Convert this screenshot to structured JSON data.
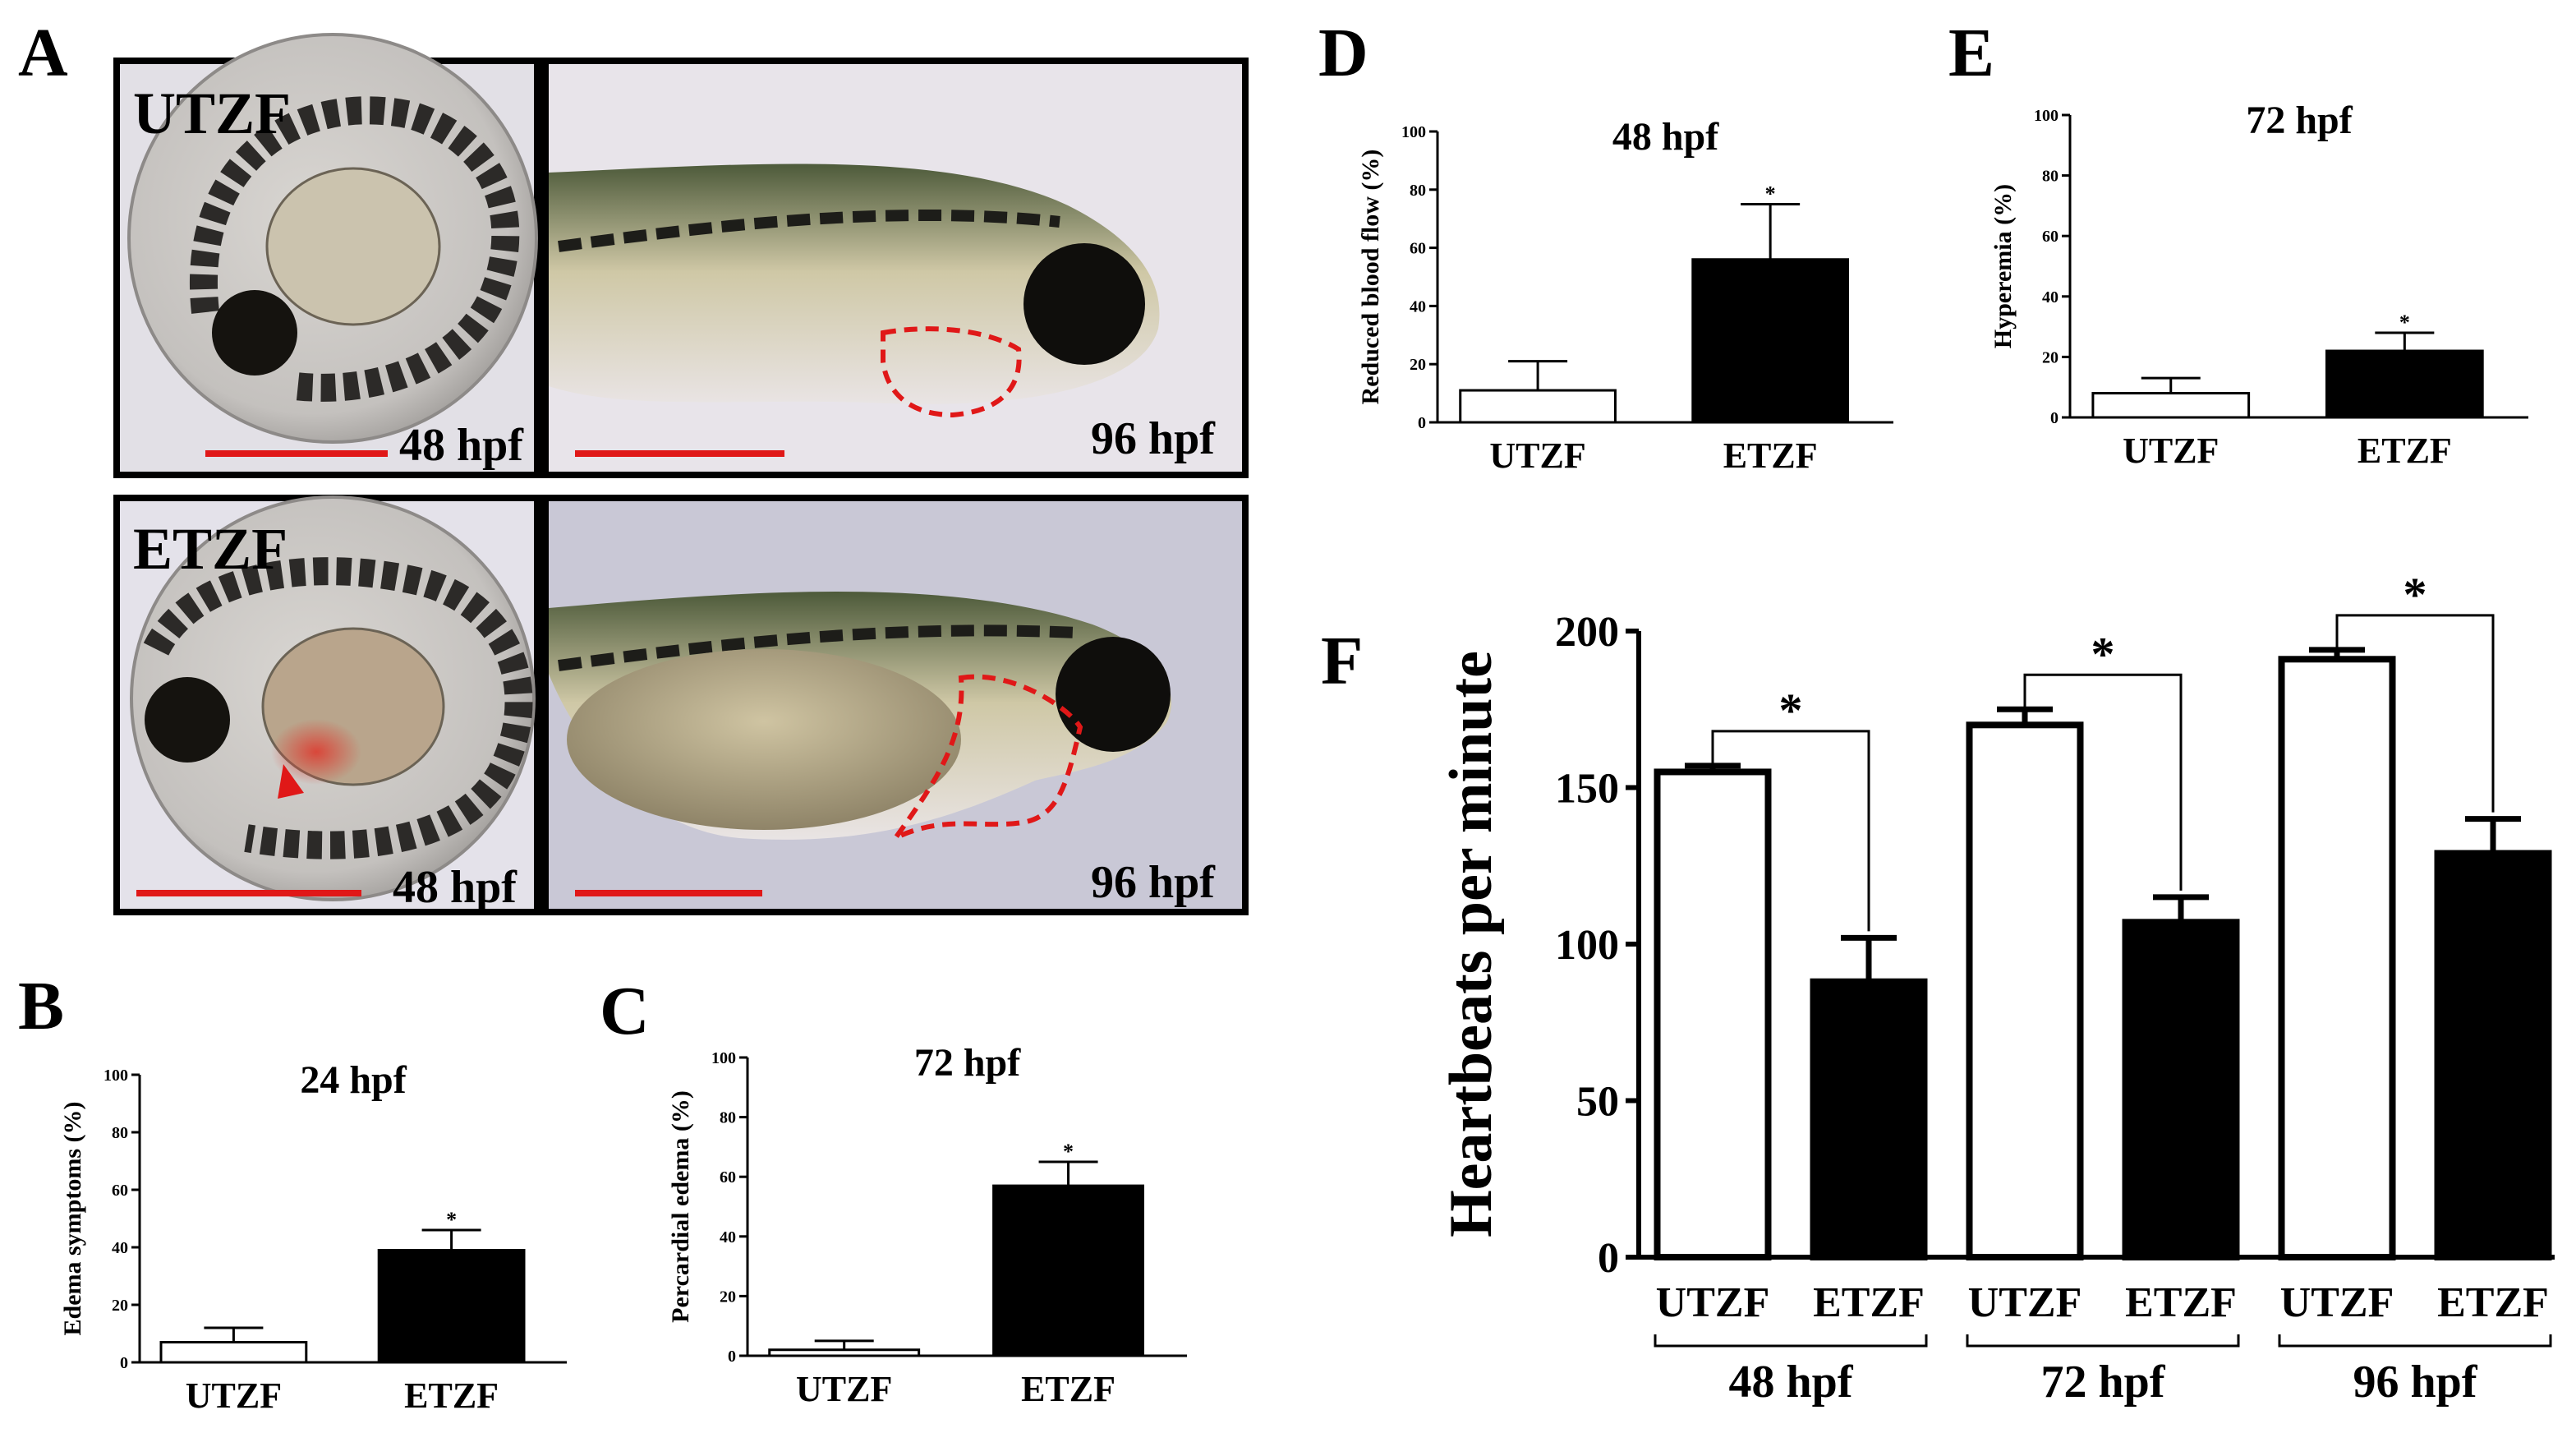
{
  "panels": {
    "A": {
      "letter": "A",
      "rows": [
        {
          "group": "UTZF",
          "left_stage": "48 hpf",
          "right_stage": "96 hpf"
        },
        {
          "group": "ETZF",
          "left_stage": "48 hpf",
          "right_stage": "96 hpf"
        }
      ]
    },
    "B": {
      "letter": "B"
    },
    "C": {
      "letter": "C"
    },
    "D": {
      "letter": "D"
    },
    "E": {
      "letter": "E"
    },
    "F": {
      "letter": "F"
    }
  },
  "colors": {
    "utzf_fill": "#ffffff",
    "etzf_fill": "#000000",
    "highlight_dashed": "#e01818"
  },
  "chart_data": [
    {
      "id": "B",
      "type": "bar",
      "title": "24 hpf",
      "ylabel": "Edema symptoms (%)",
      "categories": [
        "UTZF",
        "ETZF"
      ],
      "values": [
        7,
        39
      ],
      "errors": [
        5,
        7
      ],
      "significance": [
        "",
        "*"
      ],
      "ylim": [
        0,
        100
      ],
      "yticks": [
        0,
        20,
        40,
        60,
        80,
        100
      ]
    },
    {
      "id": "C",
      "type": "bar",
      "title": "72 hpf",
      "ylabel": "Percardial edema (%)",
      "categories": [
        "UTZF",
        "ETZF"
      ],
      "values": [
        2,
        57
      ],
      "errors": [
        3,
        8
      ],
      "significance": [
        "",
        "*"
      ],
      "ylim": [
        0,
        100
      ],
      "yticks": [
        0,
        20,
        40,
        60,
        80,
        100
      ]
    },
    {
      "id": "D",
      "type": "bar",
      "title": "48 hpf",
      "ylabel": "Reduced blood flow (%)",
      "categories": [
        "UTZF",
        "ETZF"
      ],
      "values": [
        11,
        56
      ],
      "errors": [
        10,
        19
      ],
      "significance": [
        "",
        "*"
      ],
      "ylim": [
        0,
        100
      ],
      "yticks": [
        0,
        20,
        40,
        60,
        80,
        100
      ]
    },
    {
      "id": "E",
      "type": "bar",
      "title": "72 hpf",
      "ylabel": "Hyperemia (%)",
      "categories": [
        "UTZF",
        "ETZF"
      ],
      "values": [
        8,
        22
      ],
      "errors": [
        5,
        6
      ],
      "significance": [
        "",
        "*"
      ],
      "ylim": [
        0,
        100
      ],
      "yticks": [
        0,
        20,
        40,
        60,
        80,
        100
      ]
    },
    {
      "id": "F",
      "type": "bar",
      "title": "",
      "ylabel": "Heartbeats per minute",
      "groups": [
        "48 hpf",
        "72 hpf",
        "96 hpf"
      ],
      "series": [
        {
          "name": "UTZF",
          "values": [
            155,
            170,
            191
          ],
          "errors": [
            2,
            5,
            3
          ]
        },
        {
          "name": "ETZF",
          "values": [
            88,
            107,
            129
          ],
          "errors": [
            14,
            8,
            11
          ]
        }
      ],
      "significance": "*",
      "ylim": [
        0,
        200
      ],
      "yticks": [
        0,
        50,
        100,
        150,
        200
      ]
    }
  ]
}
